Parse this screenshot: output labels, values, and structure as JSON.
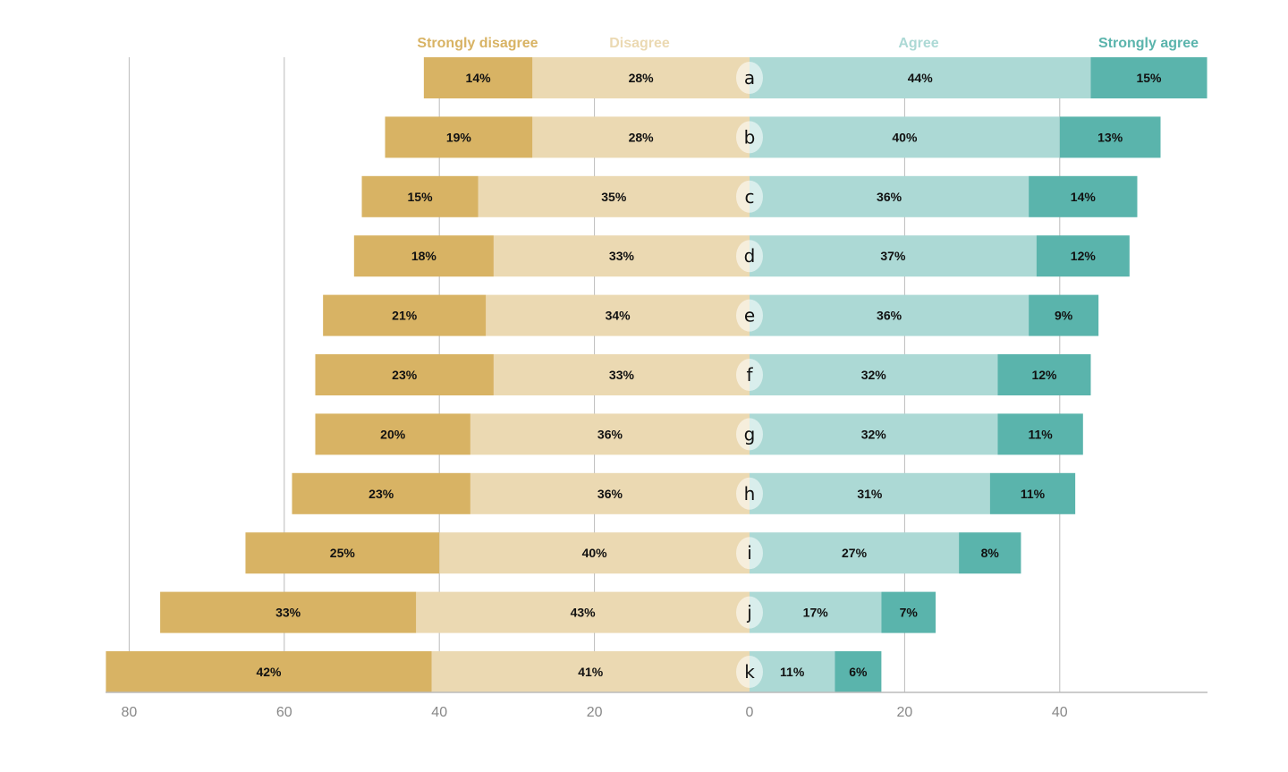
{
  "chart_data": {
    "type": "bar",
    "orientation": "horizontal-diverging-stacked",
    "categories": [
      "a",
      "b",
      "c",
      "d",
      "e",
      "f",
      "g",
      "h",
      "i",
      "j",
      "k"
    ],
    "series": [
      {
        "name": "Strongly disagree",
        "side": "negative",
        "color": "#d8b364",
        "values": [
          14,
          19,
          15,
          18,
          21,
          23,
          20,
          23,
          25,
          33,
          42
        ]
      },
      {
        "name": "Disagree",
        "side": "negative",
        "color": "#ebd9b2",
        "values": [
          28,
          28,
          35,
          33,
          34,
          33,
          36,
          36,
          40,
          43,
          41
        ]
      },
      {
        "name": "Agree",
        "side": "positive",
        "color": "#acd9d5",
        "values": [
          44,
          40,
          36,
          37,
          36,
          32,
          32,
          31,
          27,
          17,
          11
        ]
      },
      {
        "name": "Strongly agree",
        "side": "positive",
        "color": "#5ab4ac",
        "values": [
          15,
          13,
          14,
          12,
          9,
          12,
          11,
          11,
          8,
          7,
          6
        ]
      }
    ],
    "xlim": [
      -80,
      59
    ],
    "xticks": [
      -80,
      -60,
      -40,
      -20,
      0,
      20,
      40
    ],
    "xtick_labels": [
      "80",
      "60",
      "40",
      "20",
      "0",
      "20",
      "40"
    ],
    "grid": true,
    "legend_placement": "top",
    "data_label_suffix": "%"
  }
}
